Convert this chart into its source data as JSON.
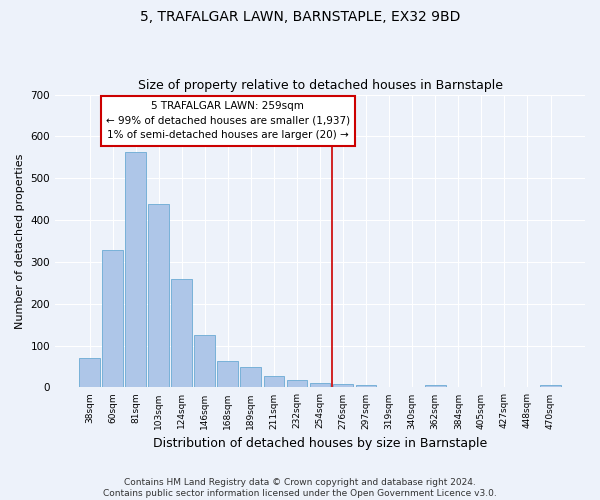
{
  "title": "5, TRAFALGAR LAWN, BARNSTAPLE, EX32 9BD",
  "subtitle": "Size of property relative to detached houses in Barnstaple",
  "xlabel": "Distribution of detached houses by size in Barnstaple",
  "ylabel": "Number of detached properties",
  "bar_labels": [
    "38sqm",
    "60sqm",
    "81sqm",
    "103sqm",
    "124sqm",
    "146sqm",
    "168sqm",
    "189sqm",
    "211sqm",
    "232sqm",
    "254sqm",
    "276sqm",
    "297sqm",
    "319sqm",
    "340sqm",
    "362sqm",
    "384sqm",
    "405sqm",
    "427sqm",
    "448sqm",
    "470sqm"
  ],
  "bar_values": [
    70,
    328,
    562,
    438,
    258,
    125,
    63,
    50,
    28,
    17,
    10,
    9,
    6,
    0,
    0,
    5,
    0,
    0,
    0,
    0,
    5
  ],
  "bar_color": "#aec6e8",
  "bar_edge_color": "#6aaad4",
  "vline_x": 10.5,
  "vline_color": "#cc0000",
  "annotation_text": "5 TRAFALGAR LAWN: 259sqm\n← 99% of detached houses are smaller (1,937)\n1% of semi-detached houses are larger (20) →",
  "annotation_box_color": "#cc0000",
  "ylim": [
    0,
    700
  ],
  "yticks": [
    0,
    100,
    200,
    300,
    400,
    500,
    600,
    700
  ],
  "bg_color": "#edf2fa",
  "grid_color": "#ffffff",
  "footer": "Contains HM Land Registry data © Crown copyright and database right 2024.\nContains public sector information licensed under the Open Government Licence v3.0.",
  "title_fontsize": 10,
  "subtitle_fontsize": 9,
  "xlabel_fontsize": 9,
  "ylabel_fontsize": 8,
  "footer_fontsize": 6.5,
  "ann_fontsize": 7.5
}
